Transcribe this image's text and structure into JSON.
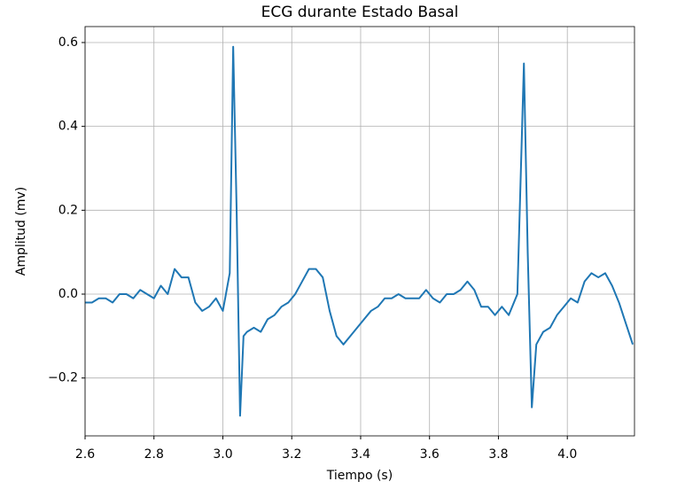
{
  "chart_data": {
    "type": "line",
    "title": "ECG durante Estado Basal",
    "x_label": "Tiempo (s)",
    "y_label": "Amplitud (mv)",
    "x": [
      2.6,
      2.62,
      2.64,
      2.66,
      2.68,
      2.7,
      2.72,
      2.74,
      2.76,
      2.78,
      2.8,
      2.82,
      2.84,
      2.86,
      2.88,
      2.9,
      2.92,
      2.94,
      2.96,
      2.98,
      3.0,
      3.02,
      3.03,
      3.04,
      3.05,
      3.06,
      3.07,
      3.09,
      3.11,
      3.13,
      3.15,
      3.17,
      3.19,
      3.21,
      3.23,
      3.25,
      3.27,
      3.29,
      3.31,
      3.33,
      3.35,
      3.37,
      3.39,
      3.41,
      3.43,
      3.45,
      3.47,
      3.49,
      3.51,
      3.53,
      3.55,
      3.57,
      3.59,
      3.61,
      3.63,
      3.65,
      3.67,
      3.69,
      3.71,
      3.73,
      3.75,
      3.77,
      3.79,
      3.81,
      3.83,
      3.855,
      3.874,
      3.885,
      3.897,
      3.91,
      3.93,
      3.95,
      3.97,
      3.99,
      4.01,
      4.03,
      4.05,
      4.07,
      4.09,
      4.11,
      4.13,
      4.15,
      4.17,
      4.19
    ],
    "series": [
      {
        "color": "#1f77b4",
        "values": [
          -0.02,
          -0.02,
          -0.01,
          -0.01,
          -0.02,
          0.0,
          0.0,
          -0.01,
          0.01,
          0.0,
          -0.01,
          0.02,
          0.0,
          0.06,
          0.04,
          0.04,
          -0.02,
          -0.04,
          -0.03,
          -0.01,
          -0.04,
          0.05,
          0.59,
          0.2,
          -0.29,
          -0.1,
          -0.09,
          -0.08,
          -0.09,
          -0.06,
          -0.05,
          -0.03,
          -0.02,
          0.0,
          0.03,
          0.06,
          0.06,
          0.04,
          -0.04,
          -0.1,
          -0.12,
          -0.1,
          -0.08,
          -0.06,
          -0.04,
          -0.03,
          -0.01,
          -0.01,
          0.0,
          -0.01,
          -0.01,
          -0.01,
          0.01,
          -0.01,
          -0.02,
          0.0,
          0.0,
          0.01,
          0.03,
          0.01,
          -0.03,
          -0.03,
          -0.05,
          -0.03,
          -0.05,
          0.0,
          0.55,
          0.1,
          -0.27,
          -0.12,
          -0.09,
          -0.08,
          -0.05,
          -0.03,
          -0.01,
          -0.02,
          0.03,
          0.05,
          0.04,
          0.05,
          0.02,
          -0.02,
          -0.07,
          -0.12
        ]
      }
    ],
    "xlim": [
      2.6,
      4.195
    ],
    "ylim": [
      -0.338,
      0.638
    ],
    "xticks": [
      2.6,
      2.8,
      {
        "value": 3.0,
        "label": "3.0"
      },
      3.2,
      3.4,
      3.6,
      3.8,
      {
        "value": 4.0,
        "label": "4.0"
      }
    ],
    "yticks": [
      {
        "value": -0.2,
        "label": "−0.2"
      },
      {
        "value": 0.0,
        "label": "0.0"
      },
      0.2,
      0.4,
      0.6
    ],
    "grid": true
  }
}
